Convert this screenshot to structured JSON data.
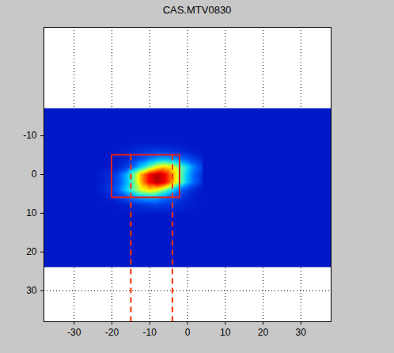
{
  "chart_data": {
    "type": "heatmap",
    "title": "CAS.MTV0830",
    "xlim": [
      -38,
      38
    ],
    "ylim": [
      -38,
      38
    ],
    "xticks": [
      -30,
      -20,
      -10,
      0,
      10,
      20,
      30
    ],
    "yticks": [
      -10,
      0,
      10,
      20,
      30
    ],
    "grid": true,
    "clim": [
      0,
      100
    ],
    "background_value": 0,
    "image_y": [
      -17,
      24
    ],
    "cells": {
      "x": [
        -24,
        -22,
        -20,
        -18,
        -16,
        -14,
        -12,
        -10,
        -8,
        -6,
        -4,
        -2,
        0,
        2,
        4
      ],
      "y": [
        -8,
        -6,
        -4,
        -2,
        0,
        2,
        4,
        6,
        8,
        10
      ],
      "values": [
        [
          0,
          0,
          0,
          0,
          0,
          1,
          1,
          1,
          1,
          1,
          1,
          1,
          0,
          0,
          0
        ],
        [
          0,
          0,
          0,
          1,
          2,
          3,
          5,
          6,
          7,
          6,
          5,
          3,
          2,
          1,
          0
        ],
        [
          0,
          0,
          0,
          1,
          3,
          7,
          12,
          18,
          23,
          25,
          23,
          18,
          12,
          7,
          3
        ],
        [
          0,
          0,
          1,
          3,
          8,
          17,
          30,
          44,
          56,
          61,
          56,
          44,
          30,
          17,
          8
        ],
        [
          1,
          2,
          5,
          13,
          26,
          46,
          69,
          87,
          95,
          87,
          69,
          46,
          26,
          13,
          5
        ],
        [
          1,
          2,
          5,
          13,
          26,
          46,
          69,
          87,
          95,
          87,
          69,
          46,
          26,
          13,
          5
        ],
        [
          1,
          3,
          8,
          17,
          30,
          44,
          56,
          61,
          56,
          44,
          30,
          17,
          8,
          3,
          0
        ],
        [
          0,
          1,
          3,
          7,
          12,
          18,
          23,
          25,
          23,
          18,
          12,
          7,
          3,
          1,
          0
        ],
        [
          0,
          0,
          0,
          1,
          2,
          3,
          5,
          6,
          7,
          6,
          5,
          3,
          2,
          1,
          0
        ],
        [
          0,
          0,
          0,
          0,
          0,
          1,
          1,
          1,
          1,
          1,
          1,
          1,
          0,
          0,
          0
        ]
      ]
    },
    "roi": {
      "x": [
        -20,
        -2
      ],
      "y": [
        -5,
        6
      ],
      "color": "#e02020"
    },
    "cuts": {
      "x": [
        -15,
        -4
      ],
      "color": "#ff3300",
      "line_style": "dashed"
    }
  }
}
